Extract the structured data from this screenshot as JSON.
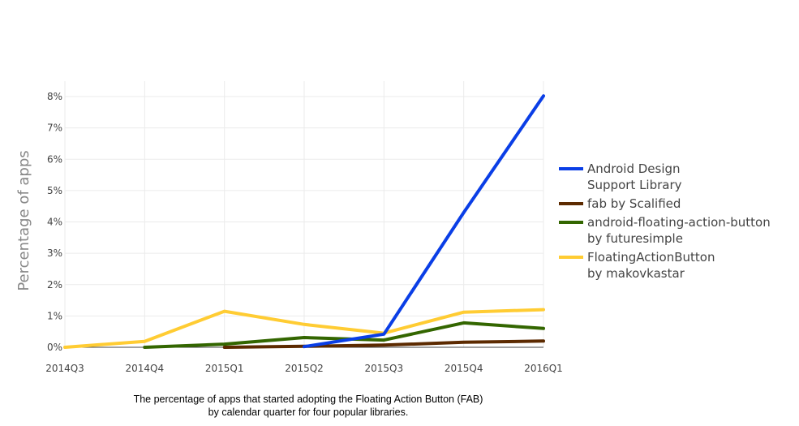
{
  "chart_data": {
    "type": "line",
    "x": [
      "2014Q3",
      "2014Q4",
      "2015Q1",
      "2015Q2",
      "2015Q3",
      "2015Q4",
      "2016Q1"
    ],
    "ylabel": "Percentage of apps",
    "xlabel": "",
    "ylim": [
      0,
      8
    ],
    "yticks": [
      0,
      1,
      2,
      3,
      4,
      5,
      6,
      7,
      8
    ],
    "ytick_labels": [
      "0%",
      "1%",
      "2%",
      "3%",
      "4%",
      "5%",
      "6%",
      "7%",
      "8%"
    ],
    "grid": true,
    "legend_position": "right",
    "series": [
      {
        "name_lines": [
          "Android Design",
          "Support Library"
        ],
        "color": "#0a3ee6",
        "x": [
          "2015Q2",
          "2015Q3",
          "2015Q4",
          "2016Q1"
        ],
        "values": [
          0.02,
          0.42,
          4.3,
          8.02
        ]
      },
      {
        "name_lines": [
          "fab by Scalified"
        ],
        "color": "#5c2a00",
        "x": [
          "2015Q1",
          "2015Q2",
          "2015Q3",
          "2015Q4",
          "2016Q1"
        ],
        "values": [
          0.0,
          0.03,
          0.07,
          0.16,
          0.2
        ]
      },
      {
        "name_lines": [
          "android-floating-action-button",
          "by futuresimple"
        ],
        "color": "#336600",
        "x": [
          "2014Q4",
          "2015Q1",
          "2015Q2",
          "2015Q3",
          "2015Q4",
          "2016Q1"
        ],
        "values": [
          0.0,
          0.1,
          0.31,
          0.23,
          0.78,
          0.6
        ]
      },
      {
        "name_lines": [
          "FloatingActionButton",
          "by makovkastar"
        ],
        "color": "#ffcc33",
        "x": [
          "2014Q3",
          "2014Q4",
          "2015Q1",
          "2015Q2",
          "2015Q3",
          "2015Q4",
          "2016Q1"
        ],
        "values": [
          0.0,
          0.19,
          1.15,
          0.73,
          0.45,
          1.12,
          1.2
        ]
      }
    ]
  },
  "caption": {
    "line1": "The percentage of apps that started adopting the Floating Action Button (FAB)",
    "line2": "by calendar quarter for four popular libraries."
  }
}
